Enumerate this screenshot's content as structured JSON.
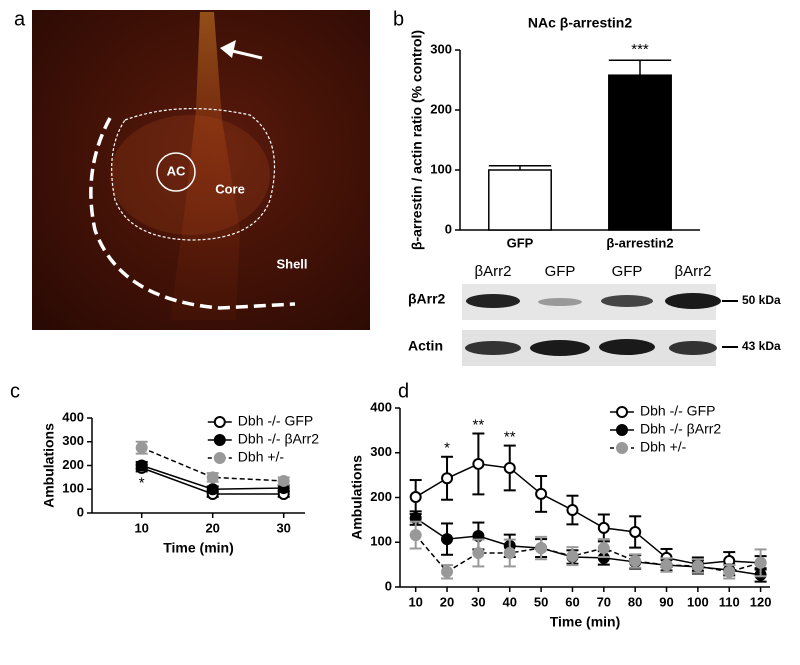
{
  "panel_labels": [
    "a",
    "b",
    "c",
    "d"
  ],
  "image": {
    "labels": [
      "AC",
      "Core",
      "Shell"
    ]
  },
  "blot": {
    "lanes": [
      "βArr2",
      "GFP",
      "GFP",
      "βArr2"
    ],
    "rows": [
      "βArr2",
      "Actin"
    ],
    "markers": [
      "50 kDa",
      "43 kDa"
    ]
  },
  "chart_data": [
    {
      "type": "bar",
      "title": "NAc β-arrestin2",
      "ylabel": "β-arrestin / actin ratio (% control)",
      "categories": [
        "GFP",
        "β-arrestin2"
      ],
      "values": [
        100,
        258
      ],
      "errors": [
        7,
        25
      ],
      "colors": [
        "#ffffff",
        "#000000"
      ],
      "ylim": [
        0,
        300
      ],
      "yticks": [
        0,
        100,
        200,
        300
      ],
      "annotations": [
        {
          "category": 1,
          "text": "***"
        }
      ]
    },
    {
      "type": "line",
      "xlabel": "Time (min)",
      "ylabel": "Ambulations",
      "x": [
        10,
        20,
        30
      ],
      "xlim": [
        3,
        33
      ],
      "xticks": [
        10,
        20,
        30
      ],
      "ylim": [
        0,
        400
      ],
      "yticks": [
        0,
        100,
        200,
        300,
        400
      ],
      "legend": "upper right",
      "series": [
        {
          "name": "Dbh -/- GFP",
          "color": "#000000",
          "fill": "#ffffff",
          "line_style": "solid",
          "values": [
            190,
            80,
            80
          ],
          "errors": [
            15,
            12,
            12
          ]
        },
        {
          "name": "Dbh -/- βArr2",
          "color": "#000000",
          "fill": "#000000",
          "line_style": "solid",
          "values": [
            200,
            100,
            105
          ],
          "errors": [
            15,
            12,
            12
          ]
        },
        {
          "name": "Dbh +/-",
          "color": "#999999",
          "fill": "#999999",
          "line_style": "dashed",
          "values": [
            275,
            150,
            135
          ],
          "errors": [
            25,
            18,
            15
          ]
        }
      ],
      "annotations": [
        {
          "x": 10,
          "text": "*",
          "position": "below"
        }
      ]
    },
    {
      "type": "line",
      "xlabel": "Time (min)",
      "ylabel": "Ambulations",
      "x": [
        10,
        20,
        30,
        40,
        50,
        60,
        70,
        80,
        90,
        100,
        110,
        120
      ],
      "xlim": [
        5,
        123
      ],
      "xticks": [
        10,
        20,
        30,
        40,
        50,
        60,
        70,
        80,
        90,
        100,
        110,
        120
      ],
      "ylim": [
        0,
        400
      ],
      "yticks": [
        0,
        100,
        200,
        300,
        400
      ],
      "legend": "upper right",
      "series": [
        {
          "name": "Dbh -/- GFP",
          "color": "#000000",
          "fill": "#ffffff",
          "line_style": "solid",
          "values": [
            201,
            243,
            275,
            266,
            208,
            172,
            132,
            123,
            65,
            51,
            58,
            54
          ],
          "errors": [
            38,
            48,
            68,
            50,
            40,
            32,
            30,
            35,
            20,
            15,
            20,
            15
          ]
        },
        {
          "name": "Dbh -/- βArr2",
          "color": "#000000",
          "fill": "#000000",
          "line_style": "solid",
          "values": [
            154,
            107,
            114,
            92,
            87,
            67,
            65,
            56,
            49,
            45,
            38,
            27
          ],
          "errors": [
            15,
            35,
            30,
            25,
            20,
            15,
            15,
            15,
            12,
            15,
            12,
            15
          ]
        },
        {
          "name": "Dbh +/-",
          "color": "#999999",
          "fill": "#999999",
          "line_style": "dashed",
          "values": [
            116,
            34,
            76,
            76,
            87,
            69,
            87,
            58,
            49,
            47,
            34,
            54
          ],
          "errors": [
            30,
            15,
            30,
            30,
            25,
            20,
            20,
            15,
            15,
            15,
            15,
            30
          ]
        }
      ],
      "annotations": [
        {
          "x": 20,
          "text": "*",
          "position": "above"
        },
        {
          "x": 30,
          "text": "**",
          "position": "above"
        },
        {
          "x": 40,
          "text": "**",
          "position": "above"
        }
      ]
    }
  ]
}
